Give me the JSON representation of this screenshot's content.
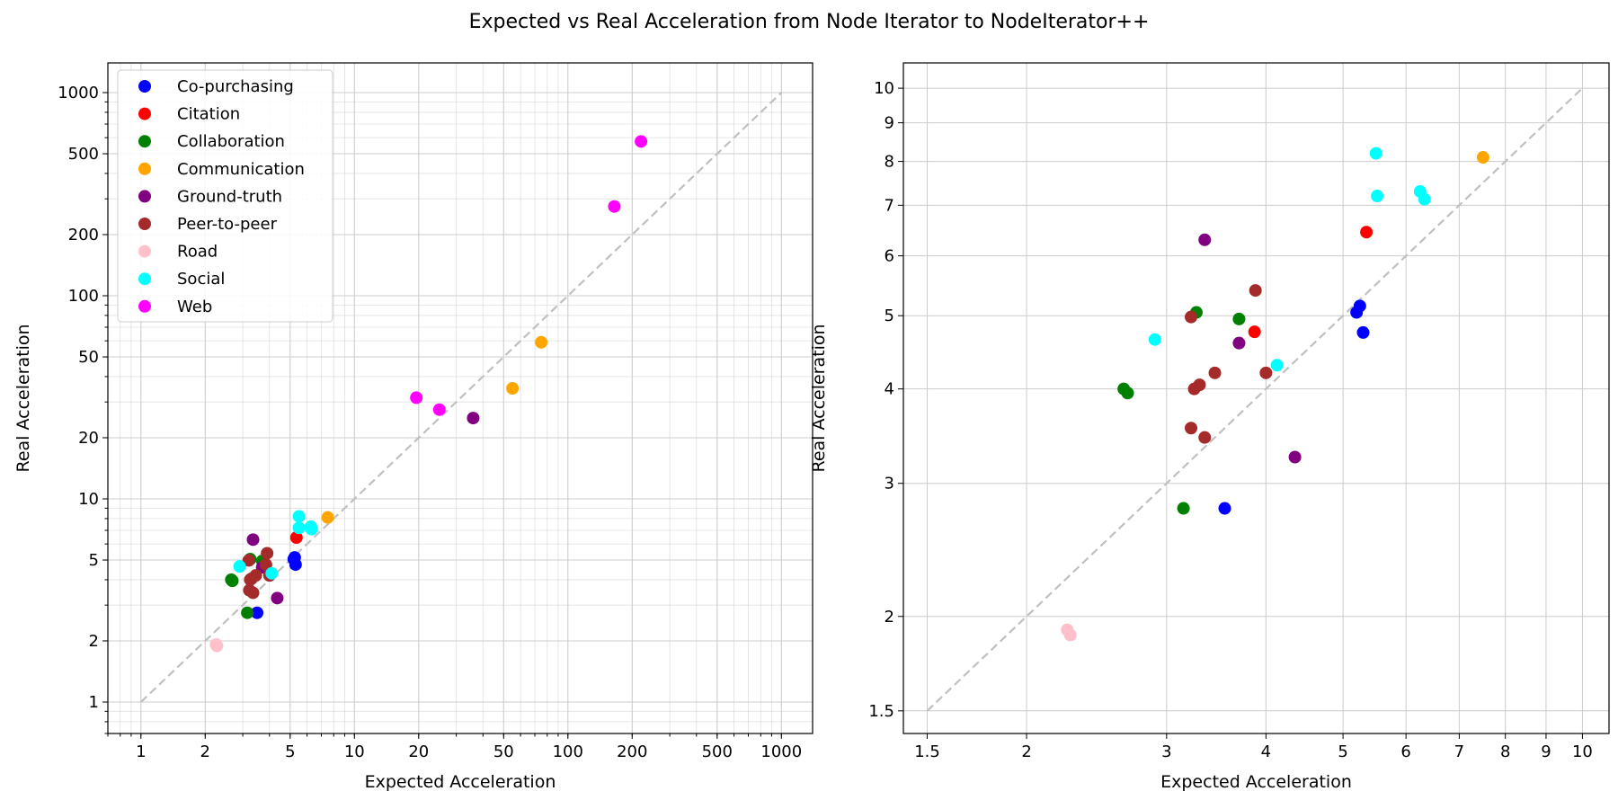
{
  "suptitle": "Expected vs Real Acceleration from Node Iterator to NodeIterator++",
  "colors": {
    "Co-purchasing": "#0000ff",
    "Citation": "#ff0000",
    "Collaboration": "#008000",
    "Communication": "#ffa500",
    "Ground-truth": "#800080",
    "Peer-to-peer": "#a52a2a",
    "Road": "#ffc0cb",
    "Social": "#00ffff",
    "Web": "#ff00ff",
    "grid": "#cccccc",
    "diagonal": "#c0c0c0"
  },
  "chart_data": [
    {
      "type": "scatter",
      "xlabel": "Expected Acceleration",
      "ylabel": "Real Acceleration",
      "xscale": "log",
      "yscale": "log",
      "xlim": [
        0.7,
        1400
      ],
      "ylim": [
        0.7,
        1400
      ],
      "xticks": [
        1,
        2,
        5,
        10,
        20,
        50,
        100,
        200,
        500,
        1000
      ],
      "yticks": [
        1,
        2,
        5,
        10,
        20,
        50,
        100,
        200,
        500,
        1000
      ],
      "minor_grid": true,
      "diagonal": [
        1,
        1000
      ],
      "legend": {
        "placement": "upper-left"
      },
      "series": [
        {
          "name": "Co-purchasing",
          "points": [
            [
              3.5,
              2.75
            ],
            [
              5.2,
              5.05
            ],
            [
              5.25,
              5.15
            ],
            [
              5.3,
              4.75
            ]
          ]
        },
        {
          "name": "Citation",
          "points": [
            [
              5.35,
              6.45
            ]
          ]
        },
        {
          "name": "Collaboration",
          "points": [
            [
              2.65,
              4.0
            ],
            [
              2.68,
              3.95
            ],
            [
              3.15,
              2.75
            ],
            [
              3.25,
              5.05
            ],
            [
              3.7,
              4.95
            ]
          ]
        },
        {
          "name": "Communication",
          "points": [
            [
              7.5,
              8.1
            ],
            [
              55,
              35
            ],
            [
              75,
              59
            ]
          ]
        },
        {
          "name": "Ground-truth",
          "points": [
            [
              3.35,
              6.3
            ],
            [
              3.7,
              4.6
            ],
            [
              4.35,
              3.25
            ],
            [
              36,
              25
            ]
          ]
        },
        {
          "name": "Peer-to-peer",
          "points": [
            [
              3.2,
              4.98
            ],
            [
              3.25,
              4.0
            ],
            [
              3.3,
              4.05
            ],
            [
              3.45,
              4.2
            ],
            [
              3.22,
              3.55
            ],
            [
              3.35,
              3.45
            ],
            [
              3.9,
              5.4
            ],
            [
              4.0,
              4.2
            ],
            [
              3.85,
              4.75
            ]
          ]
        },
        {
          "name": "Road",
          "points": [
            [
              2.25,
              1.92
            ],
            [
              2.27,
              1.89
            ]
          ]
        },
        {
          "name": "Social",
          "points": [
            [
              2.9,
              4.65
            ],
            [
              4.1,
              4.3
            ],
            [
              5.5,
              8.2
            ],
            [
              5.5,
              7.2
            ],
            [
              6.25,
              7.3
            ],
            [
              6.3,
              7.1
            ]
          ]
        },
        {
          "name": "Web",
          "points": [
            [
              19.5,
              31.5
            ],
            [
              25,
              27.5
            ],
            [
              165,
              275
            ],
            [
              220,
              575
            ]
          ]
        }
      ]
    },
    {
      "type": "scatter",
      "xlabel": "Expected Acceleration",
      "ylabel": "Real Acceleration",
      "xscale": "log",
      "yscale": "log",
      "xlim": [
        1.4,
        10.8
      ],
      "ylim": [
        1.4,
        10.8
      ],
      "xticks": [
        1.5,
        2,
        3,
        4,
        5,
        6,
        7,
        8,
        9,
        10
      ],
      "yticks": [
        1.5,
        2,
        3,
        4,
        5,
        6,
        7,
        8,
        9,
        10
      ],
      "minor_grid": false,
      "diagonal": [
        1.5,
        10
      ],
      "series": [
        {
          "name": "Co-purchasing",
          "points": [
            [
              3.55,
              2.78
            ],
            [
              5.2,
              5.05
            ],
            [
              5.25,
              5.15
            ],
            [
              5.3,
              4.75
            ]
          ]
        },
        {
          "name": "Citation",
          "points": [
            [
              3.87,
              4.76
            ],
            [
              5.35,
              6.45
            ]
          ]
        },
        {
          "name": "Collaboration",
          "points": [
            [
              2.65,
              4.0
            ],
            [
              2.68,
              3.95
            ],
            [
              3.15,
              2.78
            ],
            [
              3.27,
              5.05
            ],
            [
              3.7,
              4.95
            ]
          ]
        },
        {
          "name": "Communication",
          "points": [
            [
              7.5,
              8.1
            ]
          ]
        },
        {
          "name": "Ground-truth",
          "points": [
            [
              3.35,
              6.3
            ],
            [
              3.7,
              4.6
            ],
            [
              4.35,
              3.25
            ]
          ]
        },
        {
          "name": "Peer-to-peer",
          "points": [
            [
              3.22,
              4.98
            ],
            [
              3.25,
              4.0
            ],
            [
              3.3,
              4.05
            ],
            [
              3.45,
              4.2
            ],
            [
              3.22,
              3.55
            ],
            [
              3.35,
              3.45
            ],
            [
              3.88,
              5.4
            ],
            [
              4.0,
              4.2
            ]
          ]
        },
        {
          "name": "Road",
          "points": [
            [
              2.25,
              1.92
            ],
            [
              2.27,
              1.89
            ]
          ]
        },
        {
          "name": "Social",
          "points": [
            [
              2.9,
              4.65
            ],
            [
              4.13,
              4.3
            ],
            [
              5.5,
              8.2
            ],
            [
              5.52,
              7.2
            ],
            [
              6.25,
              7.3
            ],
            [
              6.33,
              7.13
            ]
          ]
        }
      ]
    }
  ]
}
